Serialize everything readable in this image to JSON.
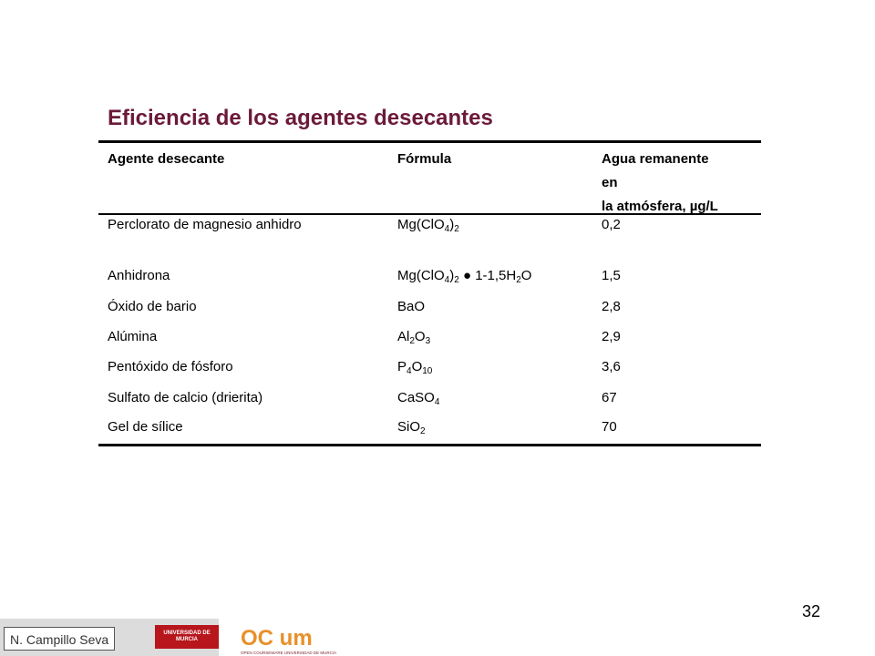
{
  "title": "Eficiencia de los agentes desecantes",
  "table": {
    "headers": {
      "agent": "Agente desecante",
      "formula": "Fórmula",
      "water_line1": "Agua remanente",
      "water_line2": "en",
      "water_line3": "la atmósfera, µg/L"
    },
    "rows": [
      {
        "agent": "Perclorato de magnesio anhidro",
        "formula": "Mg(ClO4)2",
        "value": "0,2"
      },
      {
        "agent": "Anhidrona",
        "formula": "Mg(ClO4)2 ● 1-1,5H2O",
        "value": "1,5"
      },
      {
        "agent": "Óxido de bario",
        "formula": "BaO",
        "value": "2,8"
      },
      {
        "agent": "Alúmina",
        "formula": "Al2O3",
        "value": "2,9"
      },
      {
        "agent": "Pentóxido de fósforo",
        "formula": "P4O10",
        "value": "3,6"
      },
      {
        "agent": "Sulfato de calcio (drierita)",
        "formula": "CaSO4",
        "value": "67"
      },
      {
        "agent": "Gel de sílice",
        "formula": "SiO2",
        "value": "70"
      }
    ]
  },
  "page_number": "32",
  "footer": {
    "author": "N. Campillo Seva",
    "umu_logo_text": "UNIVERSIDAD DE MURCIA",
    "ocw_logo_text": "OC um",
    "ocw_logo_subtext": "OPEN COURSEWARE  UNIVERSIDAD DE MURCIA"
  },
  "colors": {
    "title": "#6b1a3a",
    "umu_red": "#b6161c",
    "ocw_orange": "#e8902a",
    "ocw_maroon": "#7a1f2b"
  }
}
